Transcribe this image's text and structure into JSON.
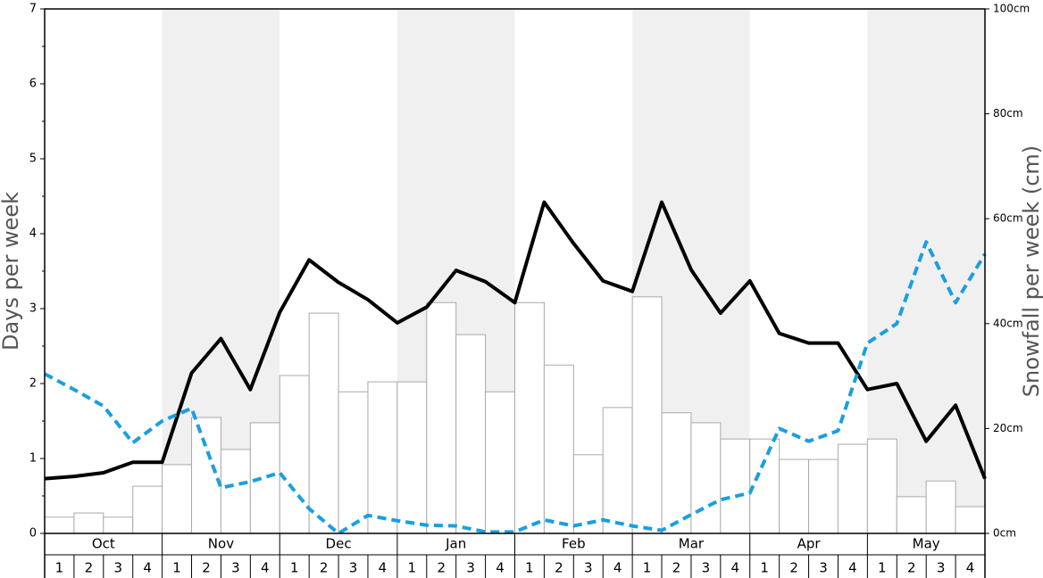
{
  "chart_data": {
    "type": "bar",
    "y_axis_label": "Days per week",
    "y2_axis_label": "Snowfall per week (cm)",
    "months": [
      "Oct",
      "Nov",
      "Dec",
      "Jan",
      "Feb",
      "Mar",
      "Apr",
      "May"
    ],
    "weeks": [
      "1",
      "2",
      "3",
      "4"
    ],
    "ylim": [
      0,
      7
    ],
    "yticks": [
      0,
      1,
      2,
      3,
      4,
      5,
      6,
      7
    ],
    "y2lim": [
      0,
      100
    ],
    "y2ticks": [
      {
        "value": 0,
        "label": "0cm"
      },
      {
        "value": 20,
        "label": "20cm"
      },
      {
        "value": 40,
        "label": "40cm"
      },
      {
        "value": 60,
        "label": "60cm"
      },
      {
        "value": 80,
        "label": "80cm"
      },
      {
        "value": 100,
        "label": "100cm"
      }
    ],
    "band_color": "#f0f0f0",
    "bars": {
      "axis": "y2",
      "color": "#ffffff",
      "edge_color": "#aaaaaa",
      "values": [
        3.1,
        3.9,
        3.1,
        9.0,
        13.1,
        22.1,
        16.0,
        21.1,
        30.1,
        42.0,
        27.0,
        28.9,
        28.9,
        44.0,
        37.9,
        27.0,
        44.0,
        32.1,
        15.0,
        24.0,
        45.1,
        23.0,
        21.1,
        18.0,
        18.0,
        14.1,
        14.1,
        17.0,
        18.0,
        7.0,
        10.0,
        5.1
      ]
    },
    "lines": [
      {
        "color": "#000000",
        "dashed": false,
        "values": [
          0.73,
          0.76,
          0.81,
          0.95,
          0.95,
          2.14,
          2.6,
          1.92,
          2.95,
          3.65,
          3.35,
          3.12,
          2.81,
          3.02,
          3.51,
          3.36,
          3.08,
          4.42,
          3.87,
          3.37,
          3.23,
          4.42,
          3.52,
          2.94,
          3.37,
          2.67,
          2.54,
          2.54,
          1.92,
          2.0,
          1.23,
          1.71,
          0.73
        ]
      },
      {
        "color": "#1a9fe0",
        "dashed": true,
        "values": [
          2.13,
          1.92,
          1.7,
          1.21,
          1.5,
          1.67,
          0.61,
          0.69,
          0.81,
          0.33,
          0.0,
          0.24,
          0.17,
          0.11,
          0.1,
          0.02,
          0.02,
          0.18,
          0.1,
          0.18,
          0.1,
          0.04,
          0.25,
          0.45,
          0.54,
          1.4,
          1.23,
          1.37,
          2.54,
          2.8,
          3.89,
          3.08,
          3.73
        ]
      }
    ]
  }
}
